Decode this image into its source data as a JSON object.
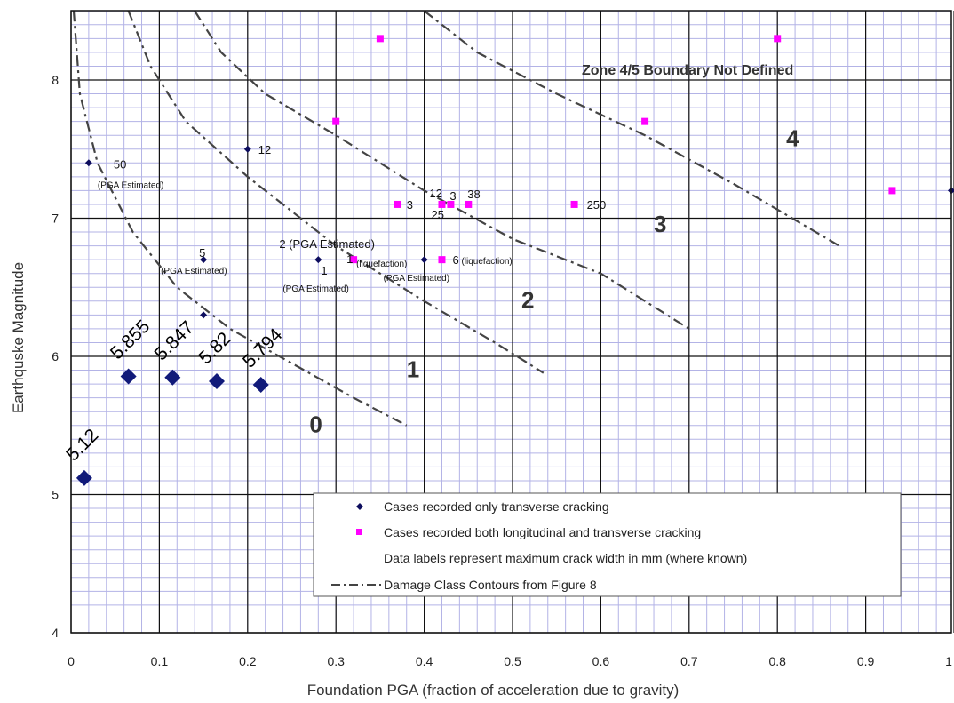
{
  "chart_data": {
    "type": "scatter",
    "xlabel": "Foundation PGA (fraction of acceleration due to gravity)",
    "ylabel": "Earthquske Magnitude",
    "xlim": [
      0,
      1
    ],
    "ylim": [
      4,
      8.5
    ],
    "x_ticks": [
      "0",
      "0.1",
      "0.2",
      "0.3",
      "0.4",
      "0.5",
      "0.6",
      "0.7",
      "0.8",
      "0.9",
      "1"
    ],
    "y_ticks": [
      "4",
      "5",
      "6",
      "7",
      "8"
    ],
    "grid": "major and minor",
    "legend_position": "bottom-right",
    "colors": {
      "transverse": "#0d0d5e",
      "longitudinal": "#ff00ff",
      "highlight": "#111a7a",
      "grid_minor": "#b3b3e6",
      "grid_major": "#111111",
      "contour": "#444444"
    },
    "series": [
      {
        "name": "Cases recorded only transverse cracking",
        "points": [
          {
            "x": 0.02,
            "y": 7.4,
            "label": "50"
          },
          {
            "x": 0.2,
            "y": 7.5,
            "label": "12"
          },
          {
            "x": 0.15,
            "y": 6.7,
            "label": "5"
          },
          {
            "x": 0.15,
            "y": 6.3,
            "label": ""
          },
          {
            "x": 0.28,
            "y": 6.7,
            "label": "1"
          },
          {
            "x": 0.4,
            "y": 6.7,
            "label": ""
          },
          {
            "x": 1.0,
            "y": 7.2,
            "label": ""
          }
        ]
      },
      {
        "name": "Cases recorded both longitudinal and transverse cracking",
        "points": [
          {
            "x": 0.35,
            "y": 8.3,
            "label": ""
          },
          {
            "x": 0.8,
            "y": 8.3,
            "label": ""
          },
          {
            "x": 0.3,
            "y": 7.7,
            "label": ""
          },
          {
            "x": 0.65,
            "y": 7.7,
            "label": ""
          },
          {
            "x": 0.93,
            "y": 7.2,
            "label": ""
          },
          {
            "x": 0.37,
            "y": 7.1,
            "label": "3"
          },
          {
            "x": 0.42,
            "y": 7.1,
            "label": "12"
          },
          {
            "x": 0.43,
            "y": 7.1,
            "label": "3"
          },
          {
            "x": 0.45,
            "y": 7.1,
            "label": "38"
          },
          {
            "x": 0.57,
            "y": 7.1,
            "label": "250"
          },
          {
            "x": 0.32,
            "y": 6.7,
            "label": "1"
          },
          {
            "x": 0.42,
            "y": 6.7,
            "label": "6"
          }
        ]
      },
      {
        "name": "",
        "points": [
          {
            "x": 0.015,
            "y": 5.12,
            "label": "5.12"
          },
          {
            "x": 0.065,
            "y": 5.855,
            "label": "5.855"
          },
          {
            "x": 0.115,
            "y": 5.847,
            "label": "5.847"
          },
          {
            "x": 0.165,
            "y": 5.82,
            "label": "5.82"
          },
          {
            "x": 0.215,
            "y": 5.794,
            "label": "5.794"
          }
        ]
      }
    ],
    "contours": [
      {
        "name": "Damage Class Contours from Figure 8",
        "points": [
          [
            0.003,
            8.5
          ],
          [
            0.01,
            7.9
          ],
          [
            0.03,
            7.4
          ],
          [
            0.07,
            6.9
          ],
          [
            0.12,
            6.5
          ],
          [
            0.18,
            6.2
          ],
          [
            0.25,
            5.95
          ],
          [
            0.32,
            5.7
          ],
          [
            0.38,
            5.5
          ]
        ]
      },
      {
        "points": [
          [
            0.065,
            8.5
          ],
          [
            0.09,
            8.1
          ],
          [
            0.13,
            7.7
          ],
          [
            0.2,
            7.3
          ],
          [
            0.3,
            6.8
          ],
          [
            0.4,
            6.4
          ],
          [
            0.48,
            6.1
          ],
          [
            0.535,
            5.88
          ]
        ]
      },
      {
        "points": [
          [
            0.14,
            8.5
          ],
          [
            0.17,
            8.2
          ],
          [
            0.22,
            7.9
          ],
          [
            0.3,
            7.6
          ],
          [
            0.4,
            7.2
          ],
          [
            0.5,
            6.85
          ],
          [
            0.6,
            6.6
          ],
          [
            0.7,
            6.2
          ]
        ]
      },
      {
        "points": [
          [
            0.4,
            8.5
          ],
          [
            0.46,
            8.2
          ],
          [
            0.55,
            7.9
          ],
          [
            0.65,
            7.6
          ],
          [
            0.75,
            7.25
          ],
          [
            0.87,
            6.8
          ]
        ]
      }
    ],
    "annotations": {
      "pga_estimated": "(PGA Estimated)",
      "pga_estimated_2": "2 (PGA Estimated)",
      "liquefaction": "(liquefaction)",
      "liquefaction_6": "(liquefaction)",
      "pga_estimated_3": "(PGA Estimated)",
      "pga_estimated_4": "(PGA Estimated)",
      "pga_estimated_5": "(PGA Estimated)",
      "label_25": "25",
      "note": "Zone 4/5 Boundary Not Defined"
    },
    "zones": [
      {
        "x": 0.27,
        "y": 5.45,
        "label": "0"
      },
      {
        "x": 0.38,
        "y": 5.85,
        "label": "1"
      },
      {
        "x": 0.51,
        "y": 6.35,
        "label": "2"
      },
      {
        "x": 0.66,
        "y": 6.9,
        "label": "3"
      },
      {
        "x": 0.81,
        "y": 7.52,
        "label": "4"
      }
    ],
    "legend": {
      "items": [
        {
          "marker": "diamond",
          "label": "Cases recorded only transverse cracking"
        },
        {
          "marker": "square",
          "label": "Cases recorded both longitudinal and transverse cracking"
        },
        {
          "marker": "none",
          "label": "Data labels represent maximum crack width in mm (where known)"
        },
        {
          "marker": "dashdot",
          "label": "Damage Class Contours from Figure 8"
        }
      ]
    }
  }
}
